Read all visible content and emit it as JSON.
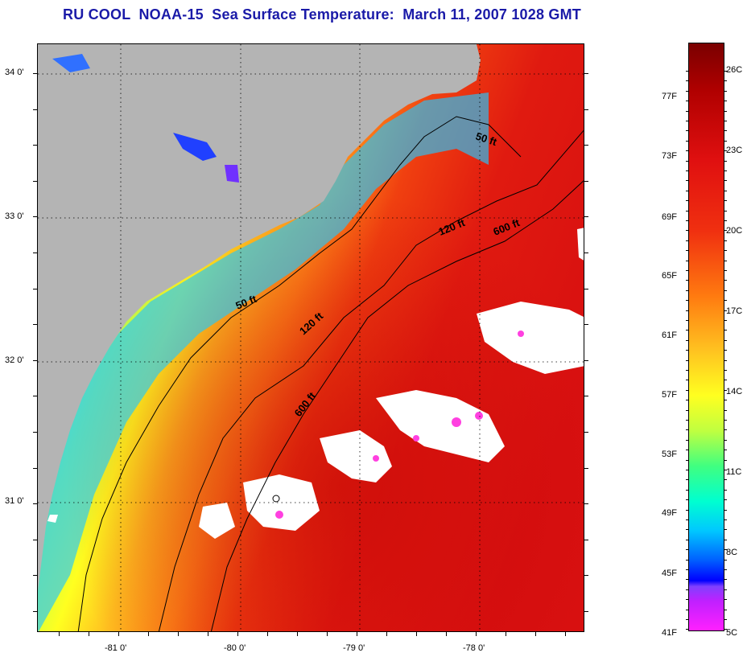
{
  "title": "RU COOL  NOAA-15  Sea Surface Temperature:  March 11, 2007 1028 GMT",
  "colors": {
    "title": "#1a1aa8",
    "land": "#b4b4b4",
    "cloud": "#ffffff"
  },
  "map": {
    "lat_ticks": [
      {
        "label": "34 0'",
        "lat": 34.0
      },
      {
        "label": "33 0'",
        "lat": 33.0
      },
      {
        "label": "32 0'",
        "lat": 32.0
      },
      {
        "label": "31 0'",
        "lat": 31.0
      }
    ],
    "lon_ticks": [
      {
        "label": "-81 0'",
        "lon": -81.0
      },
      {
        "label": "-80 0'",
        "lon": -80.0
      },
      {
        "label": "-79 0'",
        "lon": -79.0
      },
      {
        "label": "-78 0'",
        "lon": -78.0
      }
    ],
    "isobaths": [
      {
        "label": "50 ft"
      },
      {
        "label": "50 ft"
      },
      {
        "label": "120 ft"
      },
      {
        "label": "120 ft"
      },
      {
        "label": "600 ft"
      },
      {
        "label": "600 ft"
      }
    ]
  },
  "colorbar": {
    "fahrenheit": [
      "77F",
      "73F",
      "69F",
      "65F",
      "61F",
      "57F",
      "53F",
      "49F",
      "45F",
      "41F"
    ],
    "celsius": [
      "26C",
      "23C",
      "20C",
      "17C",
      "14C",
      "11C",
      "8C",
      "5C"
    ]
  }
}
